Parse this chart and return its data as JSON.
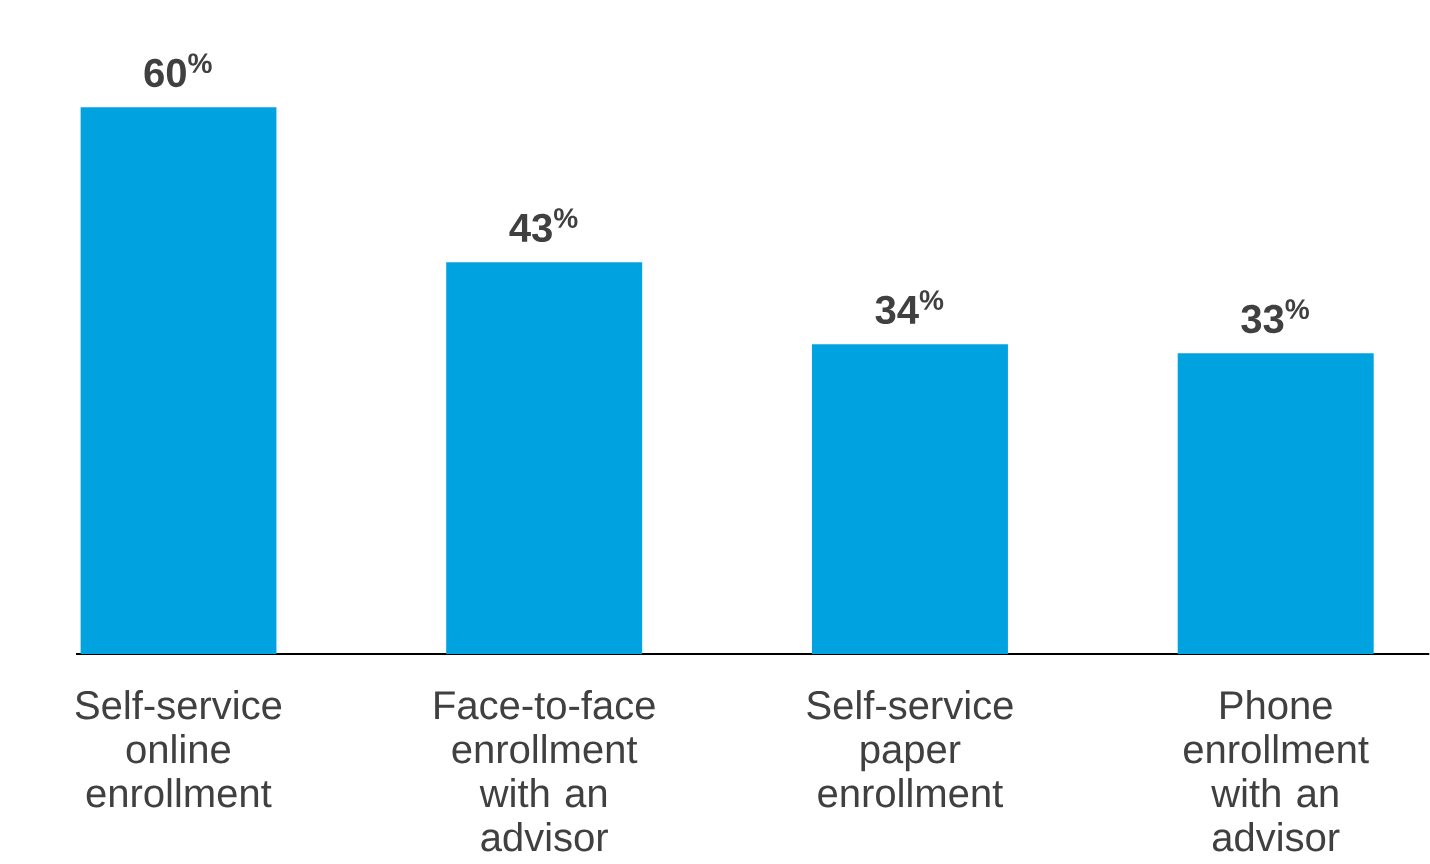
{
  "chart_data": {
    "type": "bar",
    "categories": [
      "Self-service online enrollment",
      "Face-to-face enrollment with an advisor",
      "Self-service paper enrollment",
      "Phone enrollment with an advisor"
    ],
    "values": [
      60,
      43,
      34,
      33
    ],
    "value_labels": [
      "60$^{%}$",
      "43$^{%}$",
      "34$^{%}$",
      "33$^{%}$"
    ],
    "color": "#00a3e0"
  }
}
